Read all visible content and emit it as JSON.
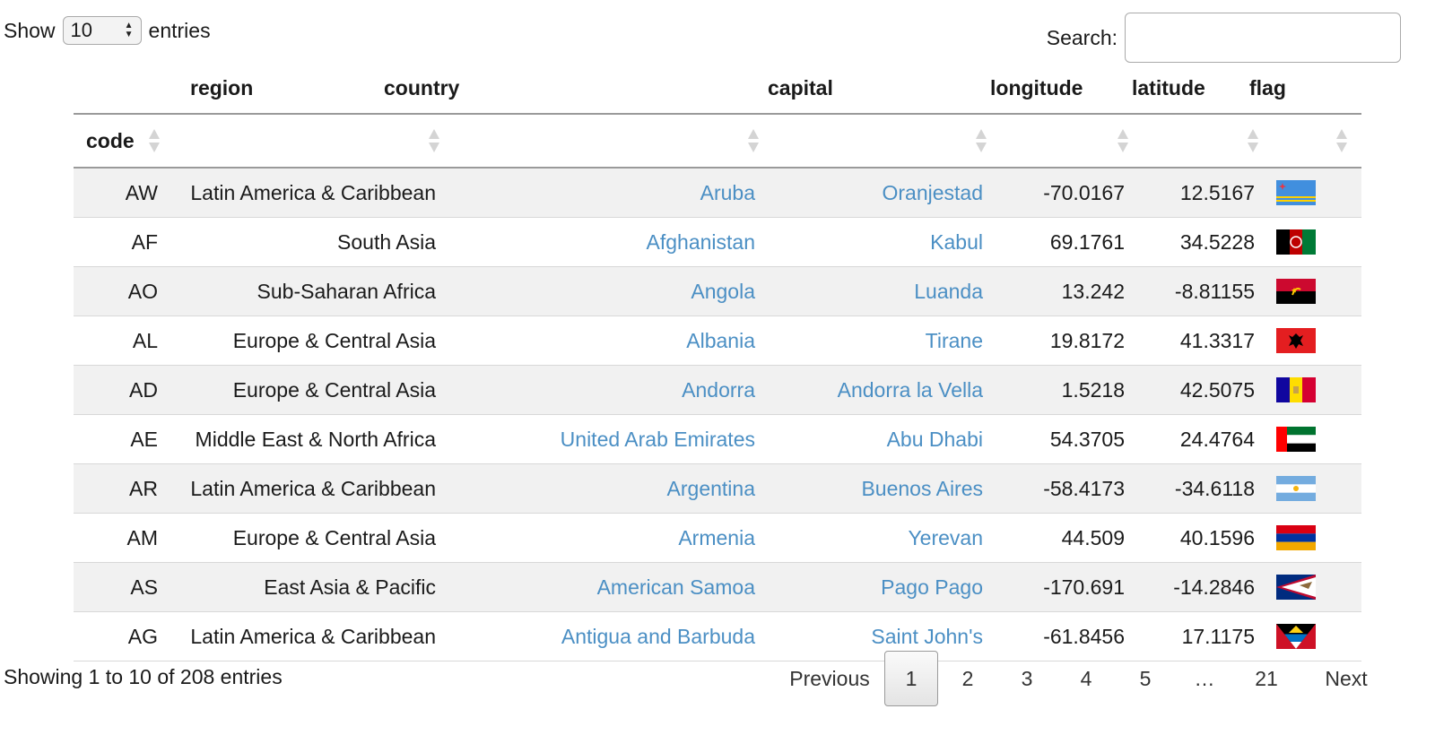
{
  "length": {
    "label_before": "Show",
    "value": "10",
    "label_after": "entries"
  },
  "search": {
    "label": "Search:",
    "value": ""
  },
  "columns": {
    "code": "code",
    "region": "region",
    "country": "country",
    "capital": "capital",
    "longitude": "longitude",
    "latitude": "latitude",
    "flag": "flag"
  },
  "rows": [
    {
      "code": "AW",
      "region": "Latin America & Caribbean",
      "country": "Aruba",
      "capital": "Oranjestad",
      "longitude": "-70.0167",
      "latitude": "12.5167",
      "flag": "aruba-flag-icon"
    },
    {
      "code": "AF",
      "region": "South Asia",
      "country": "Afghanistan",
      "capital": "Kabul",
      "longitude": "69.1761",
      "latitude": "34.5228",
      "flag": "afghanistan-flag-icon"
    },
    {
      "code": "AO",
      "region": "Sub-Saharan Africa",
      "country": "Angola",
      "capital": "Luanda",
      "longitude": "13.242",
      "latitude": "-8.81155",
      "flag": "angola-flag-icon"
    },
    {
      "code": "AL",
      "region": "Europe & Central Asia",
      "country": "Albania",
      "capital": "Tirane",
      "longitude": "19.8172",
      "latitude": "41.3317",
      "flag": "albania-flag-icon"
    },
    {
      "code": "AD",
      "region": "Europe & Central Asia",
      "country": "Andorra",
      "capital": "Andorra la Vella",
      "longitude": "1.5218",
      "latitude": "42.5075",
      "flag": "andorra-flag-icon"
    },
    {
      "code": "AE",
      "region": "Middle East & North Africa",
      "country": "United Arab Emirates",
      "capital": "Abu Dhabi",
      "longitude": "54.3705",
      "latitude": "24.4764",
      "flag": "uae-flag-icon"
    },
    {
      "code": "AR",
      "region": "Latin America & Caribbean",
      "country": "Argentina",
      "capital": "Buenos Aires",
      "longitude": "-58.4173",
      "latitude": "-34.6118",
      "flag": "argentina-flag-icon"
    },
    {
      "code": "AM",
      "region": "Europe & Central Asia",
      "country": "Armenia",
      "capital": "Yerevan",
      "longitude": "44.509",
      "latitude": "40.1596",
      "flag": "armenia-flag-icon"
    },
    {
      "code": "AS",
      "region": "East Asia & Pacific",
      "country": "American Samoa",
      "capital": "Pago Pago",
      "longitude": "-170.691",
      "latitude": "-14.2846",
      "flag": "american-samoa-flag-icon"
    },
    {
      "code": "AG",
      "region": "Latin America & Caribbean",
      "country": "Antigua and Barbuda",
      "capital": "Saint John's",
      "longitude": "-61.8456",
      "latitude": "17.1175",
      "flag": "antigua-barbuda-flag-icon"
    }
  ],
  "info": "Showing 1 to 10 of 208 entries",
  "pagination": {
    "previous": "Previous",
    "pages": [
      "1",
      "2",
      "3",
      "4",
      "5",
      "…",
      "21"
    ],
    "current": "1",
    "next": "Next"
  },
  "colors": {
    "link": "#4b8fc4",
    "stripe": "#f1f1f1"
  }
}
